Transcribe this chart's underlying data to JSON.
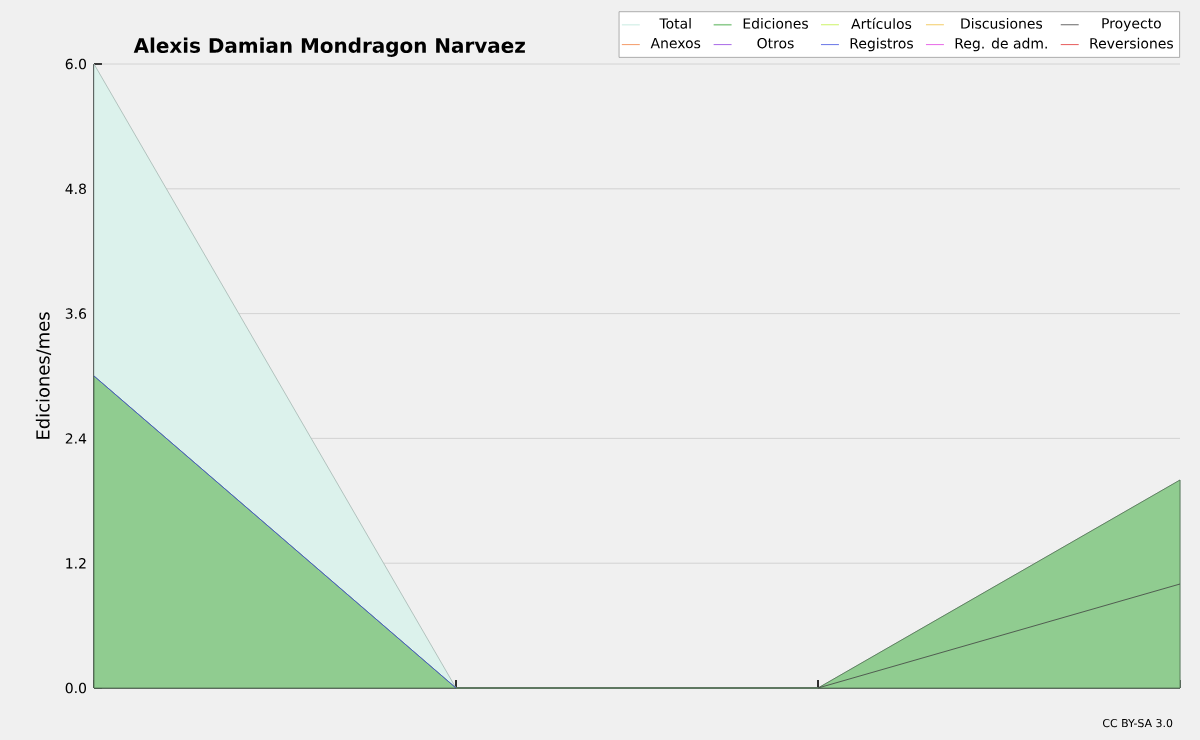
{
  "chart_data": {
    "type": "line",
    "title": "Alexis Damian Mondragon Narvaez",
    "ylabel": "Ediciones/mes",
    "categories": [
      null,
      null,
      null,
      null
    ],
    "series": [
      {
        "name": "Total",
        "type": "area",
        "color": "#dcf2ec",
        "values": [
          6,
          0,
          0,
          2
        ]
      },
      {
        "name": "Ediciones",
        "type": "area",
        "color": "#90cc90",
        "values": [
          3,
          0,
          0,
          2
        ]
      },
      {
        "name": "Artículos",
        "color": "#c0f040",
        "values": [
          null,
          null,
          null,
          null
        ]
      },
      {
        "name": "Discusiones",
        "color": "#f0c040",
        "values": [
          null,
          null,
          null,
          null
        ]
      },
      {
        "name": "Proyecto",
        "color": "#404040",
        "values": [
          null,
          null,
          0,
          1
        ]
      },
      {
        "name": "Anexos",
        "color": "#f08040",
        "values": [
          null,
          null,
          null,
          null
        ]
      },
      {
        "name": "Otros",
        "color": "#9040e0",
        "values": [
          null,
          null,
          null,
          null
        ]
      },
      {
        "name": "Registros",
        "color": "#4050e0",
        "values": [
          3,
          0,
          null,
          null
        ]
      },
      {
        "name": "Reg. de adm.",
        "color": "#e040e0",
        "values": [
          null,
          null,
          null,
          null
        ]
      },
      {
        "name": "Reversiones",
        "color": "#e03030",
        "values": [
          null,
          null,
          null,
          null
        ]
      }
    ],
    "ylim": [
      0,
      6
    ],
    "yticks": [
      {
        "value": 0,
        "label": "0.0"
      },
      {
        "value": 1.2,
        "label": "1.2"
      },
      {
        "value": 2.4,
        "label": "2.4"
      },
      {
        "value": 3.6,
        "label": "3.6"
      },
      {
        "value": 4.8,
        "label": "4.8"
      },
      {
        "value": 6,
        "label": "6.0"
      }
    ],
    "grid": "y",
    "legend": "top right",
    "tick_labels": "y",
    "annotations": [
      "CC BY-SA 3.0"
    ]
  }
}
